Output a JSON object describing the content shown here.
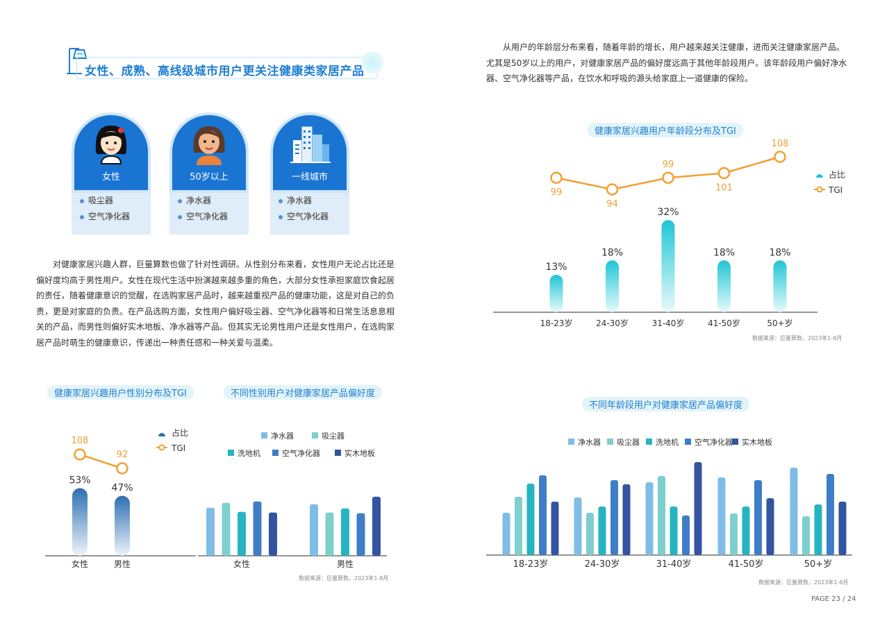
{
  "section_title": "女性、成熟、高线级城市用户更关注健康类家居产品",
  "cards": [
    {
      "label": "女性",
      "icon": "woman-avatar-icon",
      "items": [
        "吸尘器",
        "空气净化器"
      ]
    },
    {
      "label": "50岁以上",
      "icon": "older-woman-avatar-icon",
      "items": [
        "净水器",
        "空气净化器"
      ]
    },
    {
      "label": "一线城市",
      "icon": "city-buildings-icon",
      "items": [
        "净水器",
        "空气净化器"
      ]
    }
  ],
  "left_paragraph": [
    "对健康家居兴趣人群，巨量算数也做了针对性调研。从性别分布来看，女性用户无论占比还是",
    "偏好度均高于男性用户。女性在现代生活中扮演越来越多重的角色，大部分女性承担家庭饮食起居",
    "的责任，随着健康意识的觉醒，在选购家居产品时，越来越重视产品的健康功能，这是对自己的负",
    "责，更是对家庭的负责。在产品选购方面，女性用户偏好吸尘器、空气净化器等和日常生活息息相",
    "关的产品，而男性则偏好实木地板、净水器等产品。但其实无论男性用户还是女性用户，在选购家",
    "居产品时萌生的健康意识，传递出一种责任感和一种关爱与温柔。"
  ],
  "right_paragraph": [
    "从用户的年龄层分布来看，随着年龄的增长，用户越来越关注健康，进而关注健康家居产品。",
    "尤其是50岁以上的用户，对健康家居产品的偏好度远高于其他年龄段用户。该年龄段用户偏好净水",
    "器、空气净化器等产品，在饮水和呼吸的源头给家庭上一道健康的保险。"
  ],
  "source_text": "数据来源：巨量算数，2023年1-8月",
  "page_number": "PAGE 23 / 24",
  "colors": {
    "accent": "#1f7fd4",
    "orange": "#f0a030",
    "series": [
      "#7fbde6",
      "#7dd0cd",
      "#26b5c0",
      "#3f7ec7",
      "#3354a0"
    ]
  },
  "chart_data": [
    {
      "id": "age",
      "type": "bar",
      "title": "健康家居兴趣用户年龄段分布及TGI",
      "categories": [
        "18-23岁",
        "24-30岁",
        "31-40岁",
        "41-50岁",
        "50+岁"
      ],
      "series": [
        {
          "name": "占比",
          "values": [
            13,
            18,
            32,
            18,
            18
          ],
          "labels": [
            "13%",
            "18%",
            "32%",
            "18%",
            "18%"
          ]
        },
        {
          "name": "TGI",
          "type": "line",
          "values": [
            99,
            94,
            99,
            101,
            108
          ]
        }
      ],
      "legend_position": "right"
    },
    {
      "id": "gender",
      "type": "bar",
      "title": "健康家居兴趣用户性别分布及TGI",
      "categories": [
        "女性",
        "男性"
      ],
      "series": [
        {
          "name": "占比",
          "values": [
            53,
            47
          ],
          "labels": [
            "53%",
            "47%"
          ]
        },
        {
          "name": "TGI",
          "type": "line",
          "values": [
            108,
            92
          ]
        }
      ],
      "legend_position": "top-right"
    },
    {
      "id": "gender_pref",
      "type": "bar",
      "title": "不同性别用户对健康家居产品偏好度",
      "categories": [
        "女性",
        "男性"
      ],
      "series": [
        {
          "name": "净水器",
          "values": [
            70,
            75
          ]
        },
        {
          "name": "吸尘器",
          "values": [
            77,
            63
          ]
        },
        {
          "name": "洗地机",
          "values": [
            64,
            69
          ]
        },
        {
          "name": "空气净化器",
          "values": [
            79,
            62
          ]
        },
        {
          "name": "实木地板",
          "values": [
            63,
            86
          ]
        }
      ],
      "legend_position": "top"
    },
    {
      "id": "age_pref",
      "type": "bar",
      "title": "不同年龄段用户对健康家居产品偏好度",
      "categories": [
        "18-23岁",
        "24-30岁",
        "31-40岁",
        "41-50岁",
        "50+岁"
      ],
      "series": [
        {
          "name": "净水器",
          "values": [
            61,
            83,
            105,
            112,
            126
          ]
        },
        {
          "name": "吸尘器",
          "values": [
            84,
            61,
            114,
            60,
            56
          ]
        },
        {
          "name": "洗地机",
          "values": [
            103,
            70,
            70,
            70,
            73
          ]
        },
        {
          "name": "空气净化器",
          "values": [
            115,
            108,
            57,
            108,
            117
          ]
        },
        {
          "name": "实木地板",
          "values": [
            77,
            102,
            134,
            82,
            77
          ]
        }
      ],
      "legend_position": "top"
    }
  ]
}
